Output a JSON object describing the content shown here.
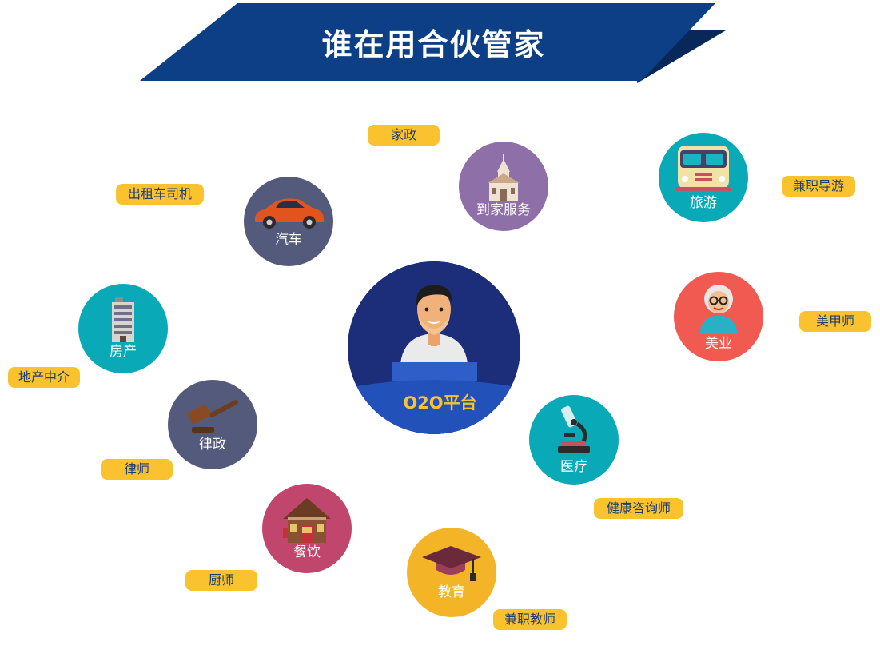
{
  "title": "谁在用合伙管家",
  "center": {
    "label": "O2O平台"
  },
  "categories": [
    {
      "label": "到家服务",
      "tag": "家政"
    },
    {
      "label": "旅游",
      "tag": "兼职导游"
    },
    {
      "label": "汽车",
      "tag": "出租车司机"
    },
    {
      "label": "房产",
      "tag": "地产中介"
    },
    {
      "label": "美业",
      "tag": "美甲师"
    },
    {
      "label": "律政",
      "tag": "律师"
    },
    {
      "label": "医疗",
      "tag": "健康咨询师"
    },
    {
      "label": "餐饮",
      "tag": "厨师"
    },
    {
      "label": "教育",
      "tag": "兼职教师"
    }
  ],
  "colors": {
    "banner": "#0d3f86",
    "banner_fold": "#08285a",
    "tag_background": "#f9c22e",
    "tag_text": "#1f3d73",
    "center": "#1c2e7a",
    "purple": "#8f6fa8",
    "teal": "#0aa9b8",
    "slate": "#545a7c",
    "coral": "#f05a50",
    "rose": "#c0466d",
    "amber": "#f4b428"
  },
  "icons": [
    "church-icon",
    "bus-icon",
    "car-icon",
    "building-icon",
    "woman-with-glasses-icon",
    "gavel-icon",
    "microscope-icon",
    "house-icon",
    "graduation-cap-icon",
    "presenter-icon"
  ]
}
